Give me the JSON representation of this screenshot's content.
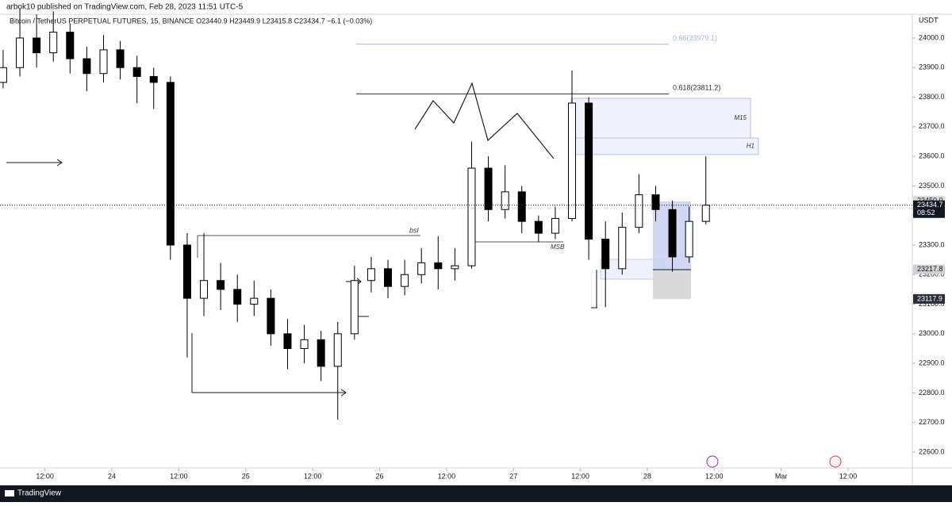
{
  "header": "arbok10 published on TradingView.com, Feb 28, 2023 11:51 UTC-5",
  "footer": "TradingView",
  "chart_data": {
    "type": "candlestick",
    "title": "Bitcoin / TetherUS PERPETUAL FUTURES, 15, BINANCE  O23440.9  H23449.9  L23415.8  C23434.7  −6.1 (−0.03%)",
    "y_axis_label": "USDT",
    "x": [
      4.5,
      7.5,
      10.5,
      13.5,
      16.5,
      19.5,
      22.5,
      25.5,
      28.5,
      31.5,
      34.5,
      37.5,
      40.5,
      43.5,
      46.5,
      49.5,
      52.5,
      55.5,
      58.5,
      61.5,
      64.5,
      67.5,
      70.5,
      73.5,
      76.5,
      79.5,
      82.5,
      85.5,
      88.5,
      91.5,
      94.5,
      97.5,
      100.5,
      103.5,
      106.5,
      109.5,
      112.5,
      115.5,
      118.5,
      121.5,
      124.5,
      127.5,
      130.5
    ],
    "open": [
      23850,
      23900,
      24000,
      23950,
      24020,
      23930,
      23880,
      23960,
      23900,
      23870,
      23850,
      23300,
      23120,
      23180,
      23150,
      23100,
      23120,
      23000,
      22950,
      22980,
      22890,
      23000,
      23180,
      23220,
      23160,
      23200,
      23240,
      23220,
      23230,
      23560,
      23420,
      23480,
      23380,
      23340,
      23390,
      23780,
      23320,
      23220,
      23360,
      23470,
      23420,
      23260,
      23380
    ],
    "high": [
      23960,
      24100,
      24080,
      24090,
      24050,
      23970,
      24010,
      23990,
      23940,
      23900,
      23870,
      23340,
      23340,
      23240,
      23200,
      23180,
      23150,
      23050,
      23030,
      23010,
      23040,
      23230,
      23260,
      23250,
      23250,
      23290,
      23330,
      23290,
      23650,
      23600,
      23570,
      23500,
      23400,
      23430,
      23890,
      23800,
      23380,
      23410,
      23540,
      23500,
      23450,
      23430,
      23600
    ],
    "low": [
      23830,
      23870,
      23900,
      23920,
      23880,
      23820,
      23850,
      23860,
      23780,
      23760,
      23250,
      22920,
      23060,
      23080,
      23040,
      23060,
      22960,
      22880,
      22900,
      22840,
      22710,
      22980,
      23140,
      23120,
      23130,
      23170,
      23150,
      23180,
      23220,
      23380,
      23390,
      23340,
      23310,
      23320,
      23380,
      23250,
      23090,
      23200,
      23340,
      23380,
      23210,
      23240,
      23370
    ],
    "close": [
      23900,
      24000,
      23950,
      24020,
      23930,
      23880,
      23960,
      23900,
      23870,
      23850,
      23300,
      23120,
      23180,
      23150,
      23100,
      23120,
      23000,
      22950,
      22980,
      22890,
      23000,
      23180,
      23220,
      23160,
      23200,
      23240,
      23220,
      23230,
      23560,
      23420,
      23480,
      23380,
      23340,
      23390,
      23780,
      23320,
      23220,
      23360,
      23470,
      23420,
      23260,
      23380,
      23434.7
    ],
    "up_color": "#ffffff",
    "down_color": "#000000",
    "outline_color": "#000000",
    "xlim": [
      3.94,
      167.52
    ],
    "ylim": [
      22546.4,
      24080.3
    ],
    "xticks": [
      {
        "value": 12,
        "label": "12:00"
      },
      {
        "value": 24,
        "label": "24"
      },
      {
        "value": 36,
        "label": "12:00"
      },
      {
        "value": 48,
        "label": "25"
      },
      {
        "value": 60,
        "label": "12:00"
      },
      {
        "value": 72,
        "label": "26"
      },
      {
        "value": 84,
        "label": "12:00"
      },
      {
        "value": 96,
        "label": "27"
      },
      {
        "value": 108,
        "label": "12:00"
      },
      {
        "value": 120,
        "label": "28"
      },
      {
        "value": 132,
        "label": "12:00"
      },
      {
        "value": 144,
        "label": "Mar"
      },
      {
        "value": 156,
        "label": "12:00"
      }
    ],
    "yticks": [
      {
        "value": 22600,
        "label": "22600.0"
      },
      {
        "value": 22700,
        "label": "22700.0"
      },
      {
        "value": 22800,
        "label": "22800.0"
      },
      {
        "value": 22900,
        "label": "22900.0"
      },
      {
        "value": 23000,
        "label": "23000.0"
      },
      {
        "value": 23100,
        "label": "23100.0"
      },
      {
        "value": 23200,
        "label": "23200.0"
      },
      {
        "value": 23300,
        "label": "23300.0"
      },
      {
        "value": 23400,
        "label": "23400.0"
      },
      {
        "value": 23500,
        "label": "23500.0"
      },
      {
        "value": 23600,
        "label": "23600.0"
      },
      {
        "value": 23700,
        "label": "23700.0"
      },
      {
        "value": 23800,
        "label": "23800.0"
      },
      {
        "value": 23900,
        "label": "23900.0"
      },
      {
        "value": 24000,
        "label": "24000.0"
      }
    ],
    "fib_levels": [
      {
        "value": 23979.1,
        "label": "0.66(23979.1)",
        "color": "#aab4e0"
      },
      {
        "value": 23811.2,
        "label": "0.618(23811.2)",
        "color": "#333333"
      }
    ],
    "zones": [
      {
        "label": "M15",
        "range": [
          23662,
          23796
        ]
      },
      {
        "label": "H1",
        "range": [
          23606,
          23662
        ]
      }
    ],
    "price_labels": [
      {
        "value": 23450,
        "label": "23450.0",
        "color": "#d9d9d9"
      },
      {
        "value": 23217.8,
        "label": "23217.8",
        "color": "#d0d0d0"
      },
      {
        "value": 23117.9,
        "label": "23117.9",
        "color": "#2a2e39"
      }
    ],
    "last_price": {
      "value": 23434.7,
      "label": "23434.7"
    },
    "countdown": "08:52",
    "annotations": [
      "bsl",
      "MSB"
    ]
  }
}
